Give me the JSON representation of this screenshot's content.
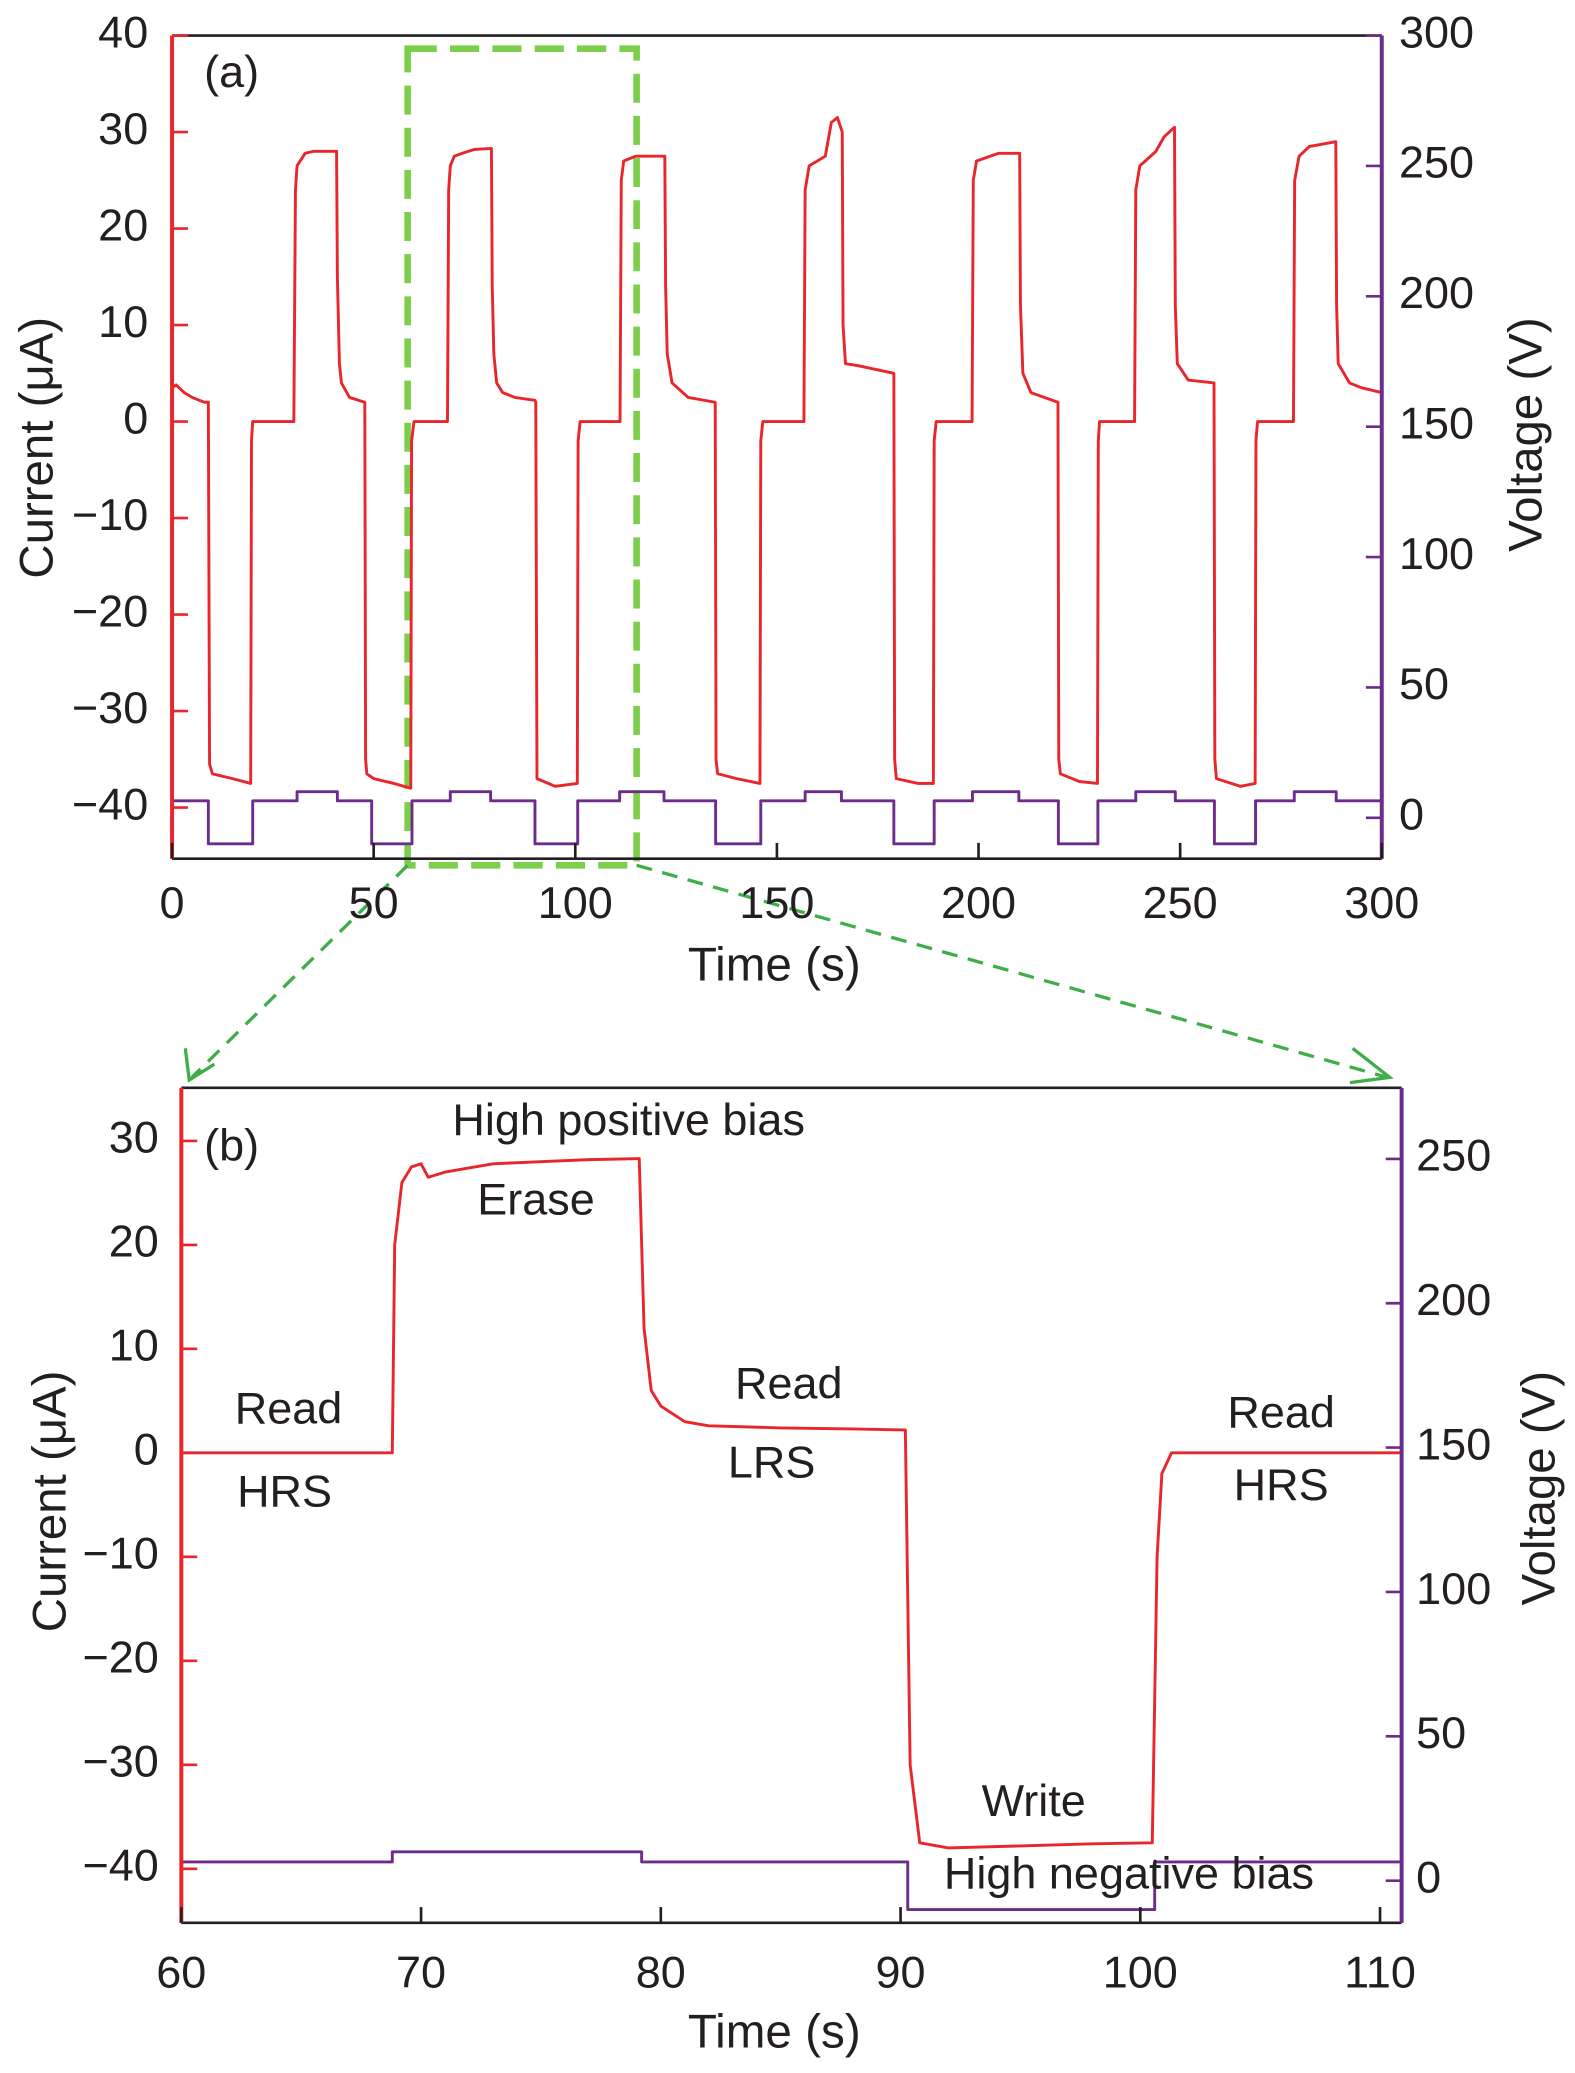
{
  "chart_data": [
    {
      "type": "line",
      "panel_label": "(a)",
      "xlabel": "Time (s)",
      "ylabel": "Current (μA)",
      "y2label": "Voltage (V)",
      "xlim": [
        0,
        300
      ],
      "xticks": [
        0,
        50,
        100,
        150,
        200,
        250,
        300
      ],
      "ylim": [
        -45.3,
        40
      ],
      "yticks": [
        {
          "value": -40,
          "label": "−40"
        },
        {
          "value": -30,
          "label": "−30"
        },
        {
          "value": -20,
          "label": "−20"
        },
        {
          "value": -10,
          "label": "−10"
        },
        0,
        10,
        20,
        30,
        40
      ],
      "y2lim": [
        -15.7,
        300
      ],
      "y2ticks": [
        0,
        50,
        100,
        150,
        200,
        250,
        300
      ],
      "series": [
        {
          "name": "Current",
          "color": "#e8262b",
          "x": [
            0,
            1,
            3,
            5,
            8,
            9,
            9.3,
            10,
            15,
            19.5,
            19.7,
            20,
            25,
            30.2,
            30.6,
            31,
            33,
            35,
            40.8,
            41,
            41.5,
            42,
            44,
            47.8,
            48,
            48.3,
            50,
            55,
            59.2,
            59.4,
            60,
            65,
            68.3,
            68.6,
            69,
            70,
            72,
            75,
            79.2,
            79.4,
            79.8,
            80.5,
            82,
            85,
            90,
            90.2,
            90.5,
            95,
            100.5,
            100.7,
            101.2,
            105,
            111.1,
            111.4,
            112,
            115,
            122.2,
            122.4,
            122.8,
            124,
            128,
            134.7,
            134.9,
            135.3,
            140,
            145.8,
            146,
            146.5,
            150,
            156.7,
            157,
            158,
            162,
            163.5,
            165,
            166.2,
            166.4,
            167,
            170,
            179,
            179.2,
            179.6,
            185,
            188.8,
            189,
            189.5,
            195,
            198.4,
            198.7,
            199.5,
            205,
            210.2,
            210.4,
            211,
            213,
            219.7,
            219.9,
            220.3,
            225,
            229.5,
            229.7,
            230,
            235,
            238.7,
            239,
            240,
            244,
            246,
            248.6,
            248.8,
            249.3,
            252,
            258.4,
            258.6,
            259,
            265,
            268.6,
            268.8,
            269.2,
            275,
            278.1,
            278.4,
            279.5,
            282,
            288.6,
            288.8,
            289.2,
            292,
            295,
            300
          ],
          "values": [
            3.5,
            3.8,
            3,
            2.5,
            2,
            2,
            -35.5,
            -36.5,
            -37,
            -37.5,
            -2,
            0,
            0,
            0,
            24,
            26.5,
            27.8,
            28,
            28,
            15,
            6,
            4,
            2.5,
            2,
            -35,
            -36.5,
            -37,
            -37.5,
            -38,
            -2,
            0,
            0,
            0,
            24,
            26.5,
            27.5,
            27.8,
            28.2,
            28.3,
            14,
            7,
            4,
            3,
            2.5,
            2.2,
            2,
            -37,
            -37.8,
            -37.5,
            -2,
            0,
            0,
            0,
            25,
            27,
            27.5,
            27.5,
            14,
            7,
            4,
            2.5,
            2,
            -35,
            -36.5,
            -37,
            -37.5,
            -2,
            0,
            0,
            0,
            24,
            26.5,
            27.5,
            31,
            31.5,
            30,
            10,
            6,
            5.8,
            5,
            -35,
            -37,
            -37.5,
            -37.5,
            -2,
            0,
            0,
            0,
            25,
            27,
            27.8,
            27.8,
            12,
            5,
            3,
            2,
            -35,
            -36.5,
            -37.3,
            -37.5,
            -2,
            0,
            0,
            0,
            24,
            26.5,
            28,
            29.5,
            30.5,
            12,
            6,
            4.3,
            4,
            -35,
            -37,
            -37.8,
            -37.5,
            -2,
            0,
            0,
            0,
            25,
            27.5,
            28.5,
            29,
            12,
            6,
            4,
            3.5,
            3
          ]
        },
        {
          "name": "Voltage",
          "color": "#6b2c8c",
          "axis": "y2",
          "x": [
            0,
            9,
            9,
            20,
            20,
            31,
            31,
            41,
            41,
            49.5,
            49.5,
            59.5,
            59.5,
            69,
            69,
            79,
            79,
            90,
            90,
            100.6,
            100.6,
            111,
            111,
            122,
            122,
            134.8,
            134.8,
            146,
            146,
            157,
            157,
            166,
            166,
            179,
            179,
            189,
            189,
            198.5,
            198.5,
            210,
            210,
            219.8,
            219.8,
            229.6,
            229.6,
            239,
            239,
            248.8,
            248.8,
            258.5,
            258.5,
            268.7,
            268.7,
            278.3,
            278.3,
            288.7,
            288.7,
            300
          ],
          "values": [
            6.5,
            6.5,
            -10,
            -10,
            6.5,
            6.5,
            10,
            10,
            6.5,
            6.5,
            -10,
            -10,
            6.5,
            6.5,
            10,
            10,
            6.5,
            6.5,
            -10,
            -10,
            6.5,
            6.5,
            10,
            10,
            6.5,
            6.5,
            -10,
            -10,
            6.5,
            6.5,
            10,
            10,
            6.5,
            6.5,
            -10,
            -10,
            6.5,
            6.5,
            10,
            10,
            6.5,
            6.5,
            -10,
            -10,
            6.5,
            6.5,
            10,
            10,
            6.5,
            6.5,
            -10,
            -10,
            6.5,
            6.5,
            10,
            10,
            6.5,
            6.5
          ]
        }
      ]
    },
    {
      "type": "line",
      "panel_label": "(b)",
      "xlabel": "Time (s)",
      "ylabel": "Current (μA)",
      "y2label": "Voltage (V)",
      "xlim": [
        60,
        110.9
      ],
      "xticks": [
        60,
        70,
        80,
        90,
        100,
        110
      ],
      "ylim": [
        -45.2,
        35.1
      ],
      "yticks": [
        {
          "value": -40,
          "label": "−40"
        },
        {
          "value": -30,
          "label": "−30"
        },
        {
          "value": -20,
          "label": "−20"
        },
        {
          "value": -10,
          "label": "−10"
        },
        0,
        10,
        20,
        30
      ],
      "y2lim": [
        -14.6,
        274.6
      ],
      "y2ticks": [
        0,
        50,
        100,
        150,
        200,
        250
      ],
      "annotations": [
        "High positive bias",
        "Erase",
        "Read",
        "HRS",
        "Read",
        "LRS",
        "Write",
        "High negative bias",
        "Read",
        "HRS"
      ],
      "series": [
        {
          "name": "Current",
          "color": "#e8262b",
          "x": [
            60,
            65,
            68.8,
            68.9,
            69.2,
            69.6,
            70,
            70.3,
            71,
            73,
            75,
            77,
            79.1,
            79.3,
            79.6,
            80,
            81,
            82,
            85,
            88,
            90.2,
            90.4,
            90.8,
            92,
            95,
            98,
            100.5,
            100.7,
            100.9,
            101.3,
            105,
            111
          ],
          "values": [
            0,
            0,
            0,
            20,
            26,
            27.5,
            27.8,
            26.5,
            27,
            27.8,
            28,
            28.2,
            28.3,
            12,
            6,
            4.5,
            3,
            2.6,
            2.4,
            2.3,
            2.2,
            -30,
            -37.5,
            -38,
            -37.8,
            -37.6,
            -37.5,
            -10,
            -2,
            0,
            0,
            0
          ]
        },
        {
          "name": "Voltage",
          "color": "#6b2c8c",
          "axis": "y2",
          "x": [
            60,
            68.8,
            68.8,
            79.2,
            79.2,
            90.3,
            90.3,
            100.6,
            100.6,
            111
          ],
          "values": [
            6.5,
            6.5,
            10,
            10,
            6.5,
            6.5,
            -10,
            -10,
            6.5,
            6.5
          ]
        }
      ]
    }
  ]
}
